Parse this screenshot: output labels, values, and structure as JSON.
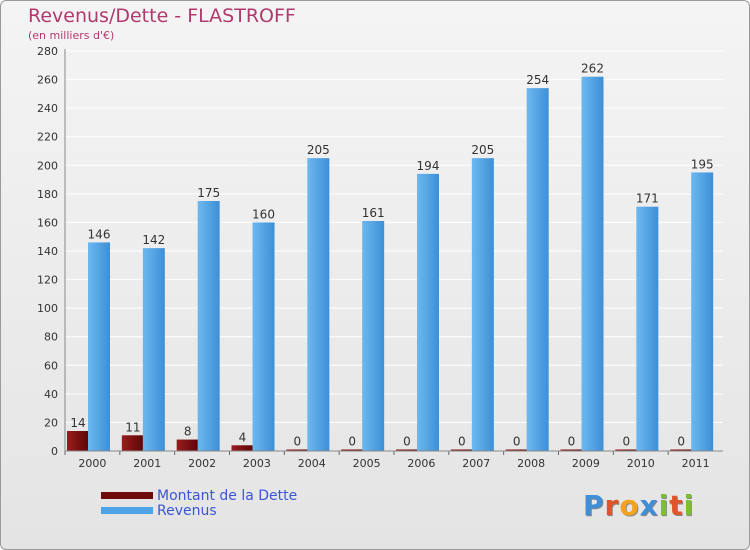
{
  "header": {
    "title": "Revenus/Dette - FLASTROFF",
    "subtitle": "(en milliers d'€)"
  },
  "legend": {
    "debt_label": "Montant de la Dette",
    "revenue_label": "Revenus"
  },
  "logo": {
    "text": "Proxiti",
    "letters": [
      "P",
      "r",
      "o",
      "x",
      "i",
      "t",
      "i"
    ],
    "letter_colors": [
      "#3e8ed8",
      "#e0542a",
      "#f2a41c",
      "#3e8ed8",
      "#7cbf2f",
      "#e0542a",
      "#7cbf2f"
    ]
  },
  "colors": {
    "debt": "#6e0b0b",
    "revenue": "#4ea3e6",
    "grid": "#ffffff",
    "axis_text": "#333333"
  },
  "chart_data": {
    "type": "bar",
    "title": "Revenus/Dette - FLASTROFF",
    "ylabel": "(en milliers d'€)",
    "xlabel": "",
    "categories": [
      "2000",
      "2001",
      "2002",
      "2003",
      "2004",
      "2005",
      "2006",
      "2007",
      "2008",
      "2009",
      "2010",
      "2011"
    ],
    "series": [
      {
        "name": "Montant de la Dette",
        "values": [
          14,
          11,
          8,
          4,
          0,
          0,
          0,
          0,
          0,
          0,
          0,
          0
        ]
      },
      {
        "name": "Revenus",
        "values": [
          146,
          142,
          175,
          160,
          205,
          161,
          194,
          205,
          254,
          262,
          171,
          195
        ]
      }
    ],
    "ylim": [
      0,
      280
    ],
    "yticks": [
      0,
      20,
      40,
      60,
      80,
      100,
      120,
      140,
      160,
      180,
      200,
      220,
      240,
      260,
      280
    ],
    "grid": true,
    "legend_position": "bottom-left"
  }
}
